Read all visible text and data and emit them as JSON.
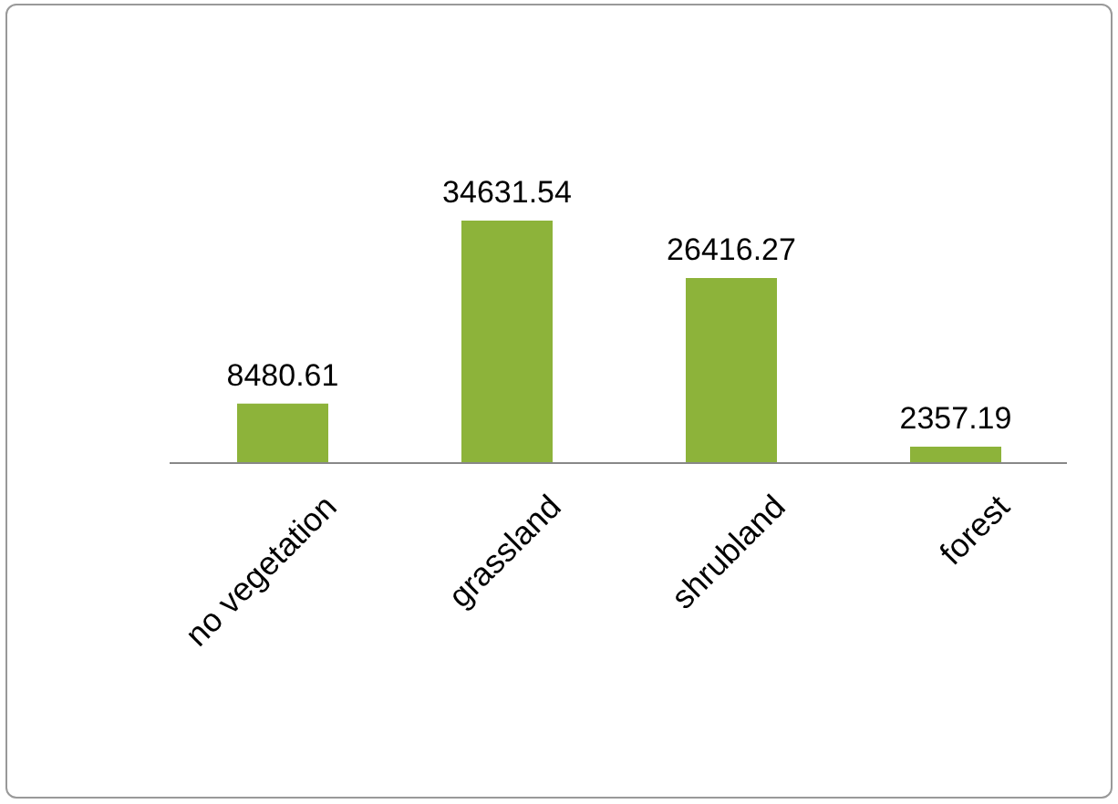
{
  "chart_data": {
    "type": "bar",
    "categories": [
      "no vegetation",
      "grassland",
      "shrubland",
      "forest"
    ],
    "values": [
      8480.61,
      34631.54,
      26416.27,
      2357.19
    ],
    "color": "#8db33a",
    "data_labels": true
  }
}
